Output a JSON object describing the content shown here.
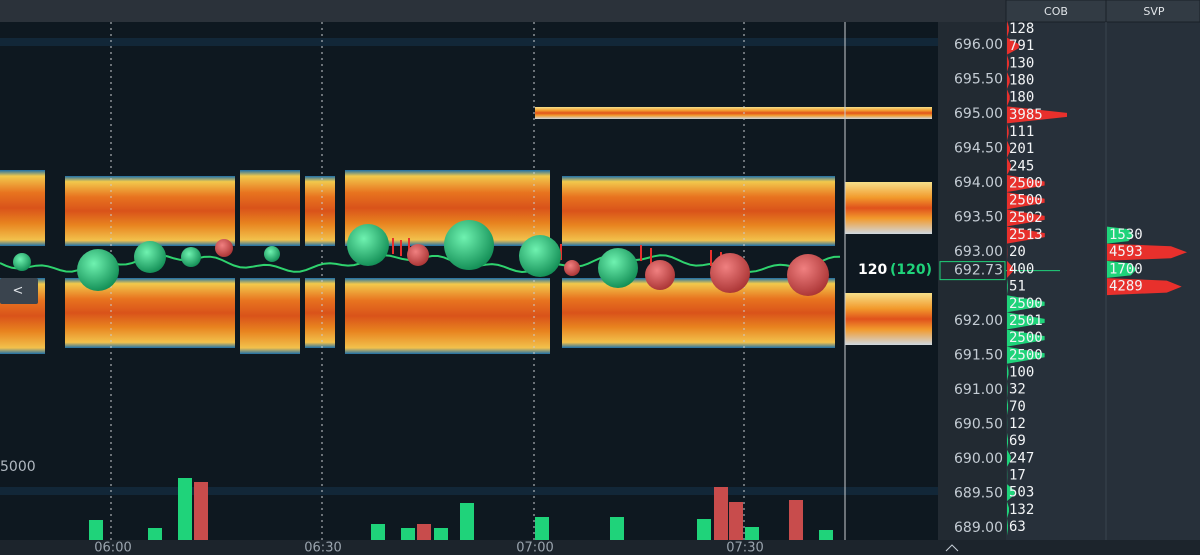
{
  "header": {
    "cob": "COB",
    "svp": "SVP"
  },
  "price_axis": {
    "labels": [
      "696.00",
      "695.50",
      "695.00",
      "694.50",
      "694.00",
      "693.50",
      "693.00",
      "692.00",
      "691.50",
      "691.00",
      "690.50",
      "690.00",
      "689.50",
      "689.00"
    ],
    "current": "692.73",
    "current_color": "#1fd37a"
  },
  "time_axis": {
    "labels": [
      "06:00",
      "06:30",
      "07:00",
      "07:30"
    ]
  },
  "last_trade": {
    "size": "120",
    "total": "(120)"
  },
  "volume_axis": {
    "label": "5000"
  },
  "nav": {
    "back": "<"
  },
  "cob": {
    "rows": [
      {
        "value": 128,
        "color": "#e8302c"
      },
      {
        "value": 791,
        "color": "#e8302c"
      },
      {
        "value": 130,
        "color": "#e8302c"
      },
      {
        "value": 180,
        "color": "#e8302c"
      },
      {
        "value": 180,
        "color": "#e8302c"
      },
      {
        "value": 3985,
        "color": "#e8302c"
      },
      {
        "value": 111,
        "color": "#e8302c"
      },
      {
        "value": 201,
        "color": "#e8302c"
      },
      {
        "value": 245,
        "color": "#e8302c"
      },
      {
        "value": 2500,
        "color": "#e8302c"
      },
      {
        "value": 2500,
        "color": "#e8302c"
      },
      {
        "value": 2502,
        "color": "#e8302c"
      },
      {
        "value": 2513,
        "color": "#e8302c"
      },
      {
        "value": 20,
        "color": "#e8302c"
      },
      {
        "value": 400,
        "color": "#e8302c"
      },
      {
        "value": 51,
        "color": "#1fd37a"
      },
      {
        "value": 2500,
        "color": "#1fd37a"
      },
      {
        "value": 2501,
        "color": "#1fd37a"
      },
      {
        "value": 2500,
        "color": "#1fd37a"
      },
      {
        "value": 2500,
        "color": "#1fd37a"
      },
      {
        "value": 100,
        "color": "#1fd37a"
      },
      {
        "value": 32,
        "color": "#1fd37a"
      },
      {
        "value": 70,
        "color": "#1fd37a"
      },
      {
        "value": 12,
        "color": "#1fd37a"
      },
      {
        "value": 69,
        "color": "#1fd37a"
      },
      {
        "value": 247,
        "color": "#1fd37a"
      },
      {
        "value": 17,
        "color": "#1fd37a"
      },
      {
        "value": 503,
        "color": "#1fd37a"
      },
      {
        "value": 132,
        "color": "#1fd37a"
      },
      {
        "value": 63,
        "color": "#1fd37a"
      }
    ]
  },
  "svp": {
    "rows": [
      {
        "value": 1530,
        "color": "#1fd37a"
      },
      {
        "value": 4593,
        "color": "#e8302c"
      },
      {
        "value": 1700,
        "color": "#1fd37a"
      },
      {
        "value": 4289,
        "color": "#e8302c"
      }
    ]
  }
}
